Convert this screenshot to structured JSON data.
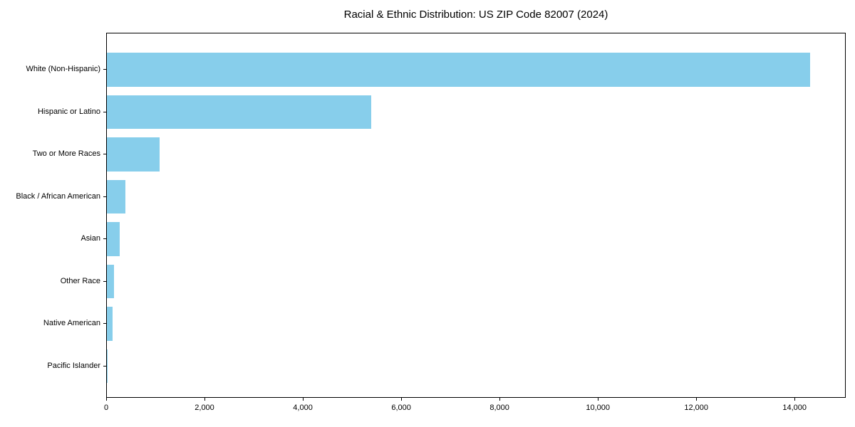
{
  "chart_data": {
    "type": "bar",
    "orientation": "horizontal",
    "title": "Racial & Ethnic Distribution: US ZIP Code 82007 (2024)",
    "categories": [
      "White (Non-Hispanic)",
      "Hispanic or Latino",
      "Two or More Races",
      "Black / African American",
      "Asian",
      "Other Race",
      "Native American",
      "Pacific Islander"
    ],
    "values": [
      14300,
      5380,
      1070,
      370,
      260,
      140,
      110,
      10
    ],
    "bar_color": "#87CEEB",
    "axis_color": "#000000",
    "text_color": "#000000",
    "background_color": "#ffffff",
    "xlim": [
      0,
      15040
    ],
    "x_ticks": [
      0,
      2000,
      4000,
      6000,
      8000,
      10000,
      12000,
      14000
    ],
    "x_tick_labels": [
      "0",
      "2,000",
      "4,000",
      "6,000",
      "8,000",
      "10,000",
      "12,000",
      "14,000"
    ],
    "xlabel": "",
    "ylabel": "",
    "grid": false,
    "legend_position": "none"
  }
}
